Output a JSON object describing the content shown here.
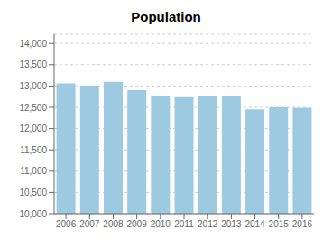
{
  "chart_data": {
    "type": "bar",
    "title": "Population",
    "categories": [
      "2006",
      "2007",
      "2008",
      "2009",
      "2010",
      "2011",
      "2012",
      "2013",
      "2014",
      "2015",
      "2016"
    ],
    "values": [
      13060,
      13010,
      13100,
      12900,
      12760,
      12740,
      12760,
      12760,
      12450,
      12500,
      12490
    ],
    "color": "#9ecae1",
    "ylim": [
      10000,
      14216
    ],
    "yticks": [
      {
        "value": 10000,
        "label": "10,000"
      },
      {
        "value": 10500,
        "label": "10,500"
      },
      {
        "value": 11000,
        "label": "11,000"
      },
      {
        "value": 11500,
        "label": "11,500"
      },
      {
        "value": 12000,
        "label": "12,000"
      },
      {
        "value": 12500,
        "label": "12,500"
      },
      {
        "value": 13000,
        "label": "13,000"
      },
      {
        "value": 13500,
        "label": "13,500"
      },
      {
        "value": 14000,
        "label": "14,000"
      }
    ],
    "grid": true
  }
}
